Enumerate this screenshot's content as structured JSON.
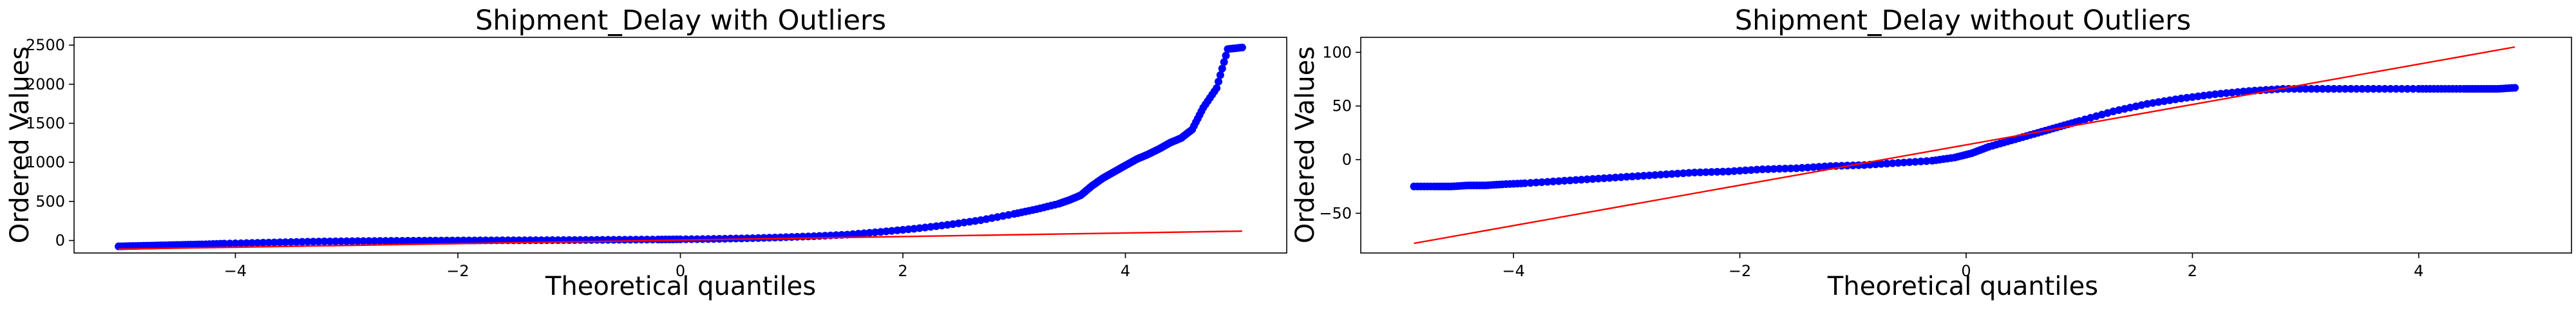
{
  "chart_data": [
    {
      "type": "scatter",
      "title": "Shipment_Delay with Outliers",
      "xlabel": "Theoretical quantiles",
      "ylabel": "Ordered Values",
      "xlim": [
        -5.45,
        5.45
      ],
      "ylim": [
        -160,
        2600
      ],
      "xticks": [
        -4,
        -2,
        0,
        2,
        4
      ],
      "xtick_labels": [
        "−4",
        "−2",
        "0",
        "2",
        "4"
      ],
      "yticks": [
        0,
        500,
        1000,
        1500,
        2000,
        2500
      ],
      "ytick_labels": [
        "0",
        "500",
        "1000",
        "1500",
        "2000",
        "2500"
      ],
      "grid": false,
      "series": [
        {
          "kind": "points",
          "color": "#0000ff",
          "x": [
            -5.05,
            -4.9,
            -4.75,
            -4.6,
            -4.45,
            -4.3,
            -4.1,
            -3.8,
            -3.5,
            -3.2,
            -2.9,
            -2.6,
            -2.3,
            -2.0,
            -1.7,
            -1.4,
            -1.1,
            -0.8,
            -0.5,
            -0.2,
            0.0,
            0.3,
            0.6,
            0.9,
            1.2,
            1.5,
            1.8,
            2.1,
            2.4,
            2.7,
            3.0,
            3.2,
            3.4,
            3.5,
            3.6,
            3.7,
            3.8,
            3.9,
            4.0,
            4.1,
            4.2,
            4.3,
            4.4,
            4.5,
            4.6,
            4.7,
            4.82,
            4.92,
            5.05
          ],
          "y": [
            -75,
            -70,
            -65,
            -60,
            -55,
            -50,
            -40,
            -30,
            -20,
            -12,
            -8,
            -5,
            -2,
            0,
            2,
            3,
            5,
            7,
            10,
            13,
            15,
            20,
            28,
            40,
            55,
            75,
            110,
            150,
            200,
            260,
            340,
            400,
            470,
            520,
            580,
            700,
            800,
            880,
            960,
            1040,
            1100,
            1170,
            1250,
            1310,
            1420,
            1700,
            1950,
            2450,
            2470
          ]
        },
        {
          "kind": "fit_line",
          "color": "#ff0000",
          "x": [
            -5.05,
            5.05
          ],
          "y": [
            -110,
            120
          ]
        }
      ]
    },
    {
      "type": "scatter",
      "title": "Shipment_Delay without Outliers",
      "xlabel": "Theoretical quantiles",
      "ylabel": "Ordered Values",
      "xlim": [
        -5.35,
        5.35
      ],
      "ylim": [
        -87,
        114
      ],
      "xticks": [
        -4,
        -2,
        0,
        2,
        4
      ],
      "xtick_labels": [
        "−4",
        "−2",
        "0",
        "2",
        "4"
      ],
      "yticks": [
        -50,
        0,
        50,
        100
      ],
      "ytick_labels": [
        "−50",
        "0",
        "50",
        "100"
      ],
      "grid": false,
      "series": [
        {
          "kind": "points",
          "color": "#0000ff",
          "x": [
            -4.88,
            -4.7,
            -4.55,
            -4.4,
            -4.25,
            -4.1,
            -3.9,
            -3.6,
            -3.3,
            -3.0,
            -2.7,
            -2.4,
            -2.1,
            -1.8,
            -1.5,
            -1.2,
            -0.9,
            -0.6,
            -0.3,
            -0.1,
            0.05,
            0.2,
            0.4,
            0.6,
            0.8,
            1.0,
            1.3,
            1.6,
            1.9,
            2.2,
            2.5,
            2.8,
            3.1,
            3.4,
            3.7,
            4.0,
            4.2,
            4.4,
            4.55,
            4.7,
            4.85
          ],
          "y": [
            -25,
            -25,
            -25,
            -24,
            -24,
            -23,
            -22,
            -20,
            -18,
            -16,
            -14,
            -12,
            -11,
            -9,
            -8,
            -6,
            -5,
            -3,
            -1,
            2,
            6,
            12,
            18,
            24,
            30,
            36,
            45,
            52,
            57,
            61,
            64,
            66,
            66,
            66,
            66,
            66,
            66,
            66,
            66,
            66,
            67
          ]
        },
        {
          "kind": "fit_line",
          "color": "#ff0000",
          "x": [
            -4.88,
            4.85
          ],
          "y": [
            -78,
            105
          ]
        }
      ]
    }
  ]
}
